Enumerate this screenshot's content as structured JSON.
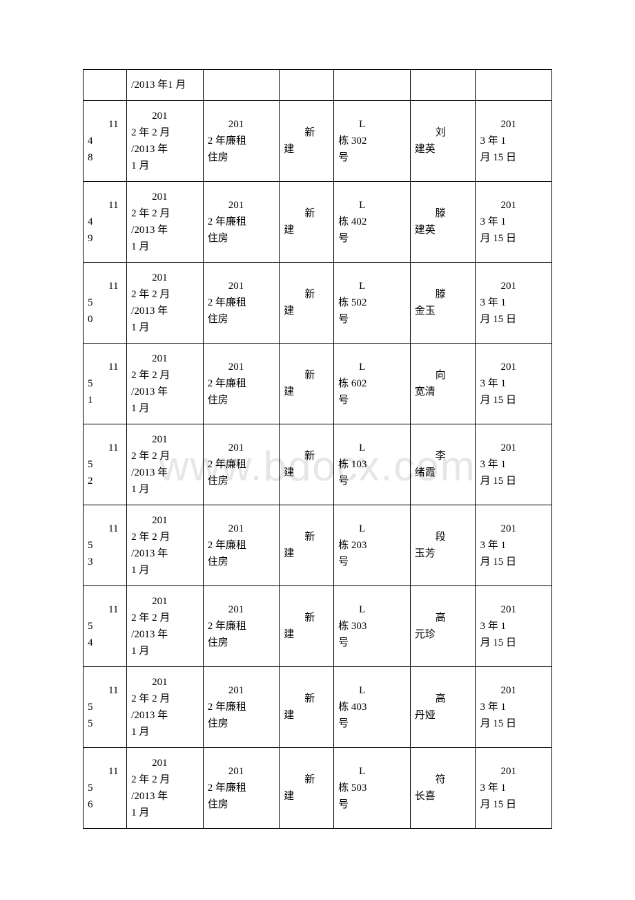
{
  "watermark": "www.bdocx.com",
  "rows": [
    {
      "c0": "",
      "c1": "/2013 年1 月",
      "c2": "",
      "c3": "",
      "c4": "",
      "c5": "",
      "c6": ""
    },
    {
      "c0_top": "114",
      "c0_bot": "8",
      "c1_top": "201",
      "c1_mid": "2 年 2 月",
      "c1_mid2": "/2013 年",
      "c1_bot": "1 月",
      "c2_top": "201",
      "c2_mid": "2 年廉租",
      "c2_bot": "住房",
      "c3_top": "新",
      "c3_bot": "建",
      "c4_top": "L",
      "c4_mid": "栋 302",
      "c4_bot": "号",
      "c5_top": "刘",
      "c5_bot": "建英",
      "c6_top": "201",
      "c6_mid": "3 年 1",
      "c6_bot": "月 15 日"
    },
    {
      "c0_top": "114",
      "c0_bot": "9",
      "c1_top": "201",
      "c1_mid": "2 年 2 月",
      "c1_mid2": "/2013 年",
      "c1_bot": "1 月",
      "c2_top": "201",
      "c2_mid": "2 年廉租",
      "c2_bot": "住房",
      "c3_top": "新",
      "c3_bot": "建",
      "c4_top": "L",
      "c4_mid": "栋 402",
      "c4_bot": "号",
      "c5_top": "滕",
      "c5_bot": "建英",
      "c6_top": "201",
      "c6_mid": "3 年 1",
      "c6_bot": "月 15 日"
    },
    {
      "c0_top": "115",
      "c0_bot": "0",
      "c1_top": "201",
      "c1_mid": "2 年 2 月",
      "c1_mid2": "/2013 年",
      "c1_bot": "1 月",
      "c2_top": "201",
      "c2_mid": "2 年廉租",
      "c2_bot": "住房",
      "c3_top": "新",
      "c3_bot": "建",
      "c4_top": "L",
      "c4_mid": "栋 502",
      "c4_bot": "号",
      "c5_top": "滕",
      "c5_bot": "金玉",
      "c6_top": "201",
      "c6_mid": "3 年 1",
      "c6_bot": "月 15 日"
    },
    {
      "c0_top": "115",
      "c0_bot": "1",
      "c1_top": "201",
      "c1_mid": "2 年 2 月",
      "c1_mid2": "/2013 年",
      "c1_bot": "1 月",
      "c2_top": "201",
      "c2_mid": "2 年廉租",
      "c2_bot": "住房",
      "c3_top": "新",
      "c3_bot": "建",
      "c4_top": "L",
      "c4_mid": "栋 602",
      "c4_bot": "号",
      "c5_top": "向",
      "c5_bot": "宽清",
      "c6_top": "201",
      "c6_mid": "3 年 1",
      "c6_bot": "月 15 日"
    },
    {
      "c0_top": "115",
      "c0_bot": "2",
      "c1_top": "201",
      "c1_mid": "2 年 2 月",
      "c1_mid2": "/2013 年",
      "c1_bot": "1 月",
      "c2_top": "201",
      "c2_mid": "2 年廉租",
      "c2_bot": "住房",
      "c3_top": "新",
      "c3_bot": "建",
      "c4_top": "L",
      "c4_mid": "栋 103",
      "c4_bot": "号",
      "c5_top": "李",
      "c5_bot": "绪霞",
      "c6_top": "201",
      "c6_mid": "3 年 1",
      "c6_bot": "月 15 日"
    },
    {
      "c0_top": "115",
      "c0_bot": "3",
      "c1_top": "201",
      "c1_mid": "2 年 2 月",
      "c1_mid2": "/2013 年",
      "c1_bot": "1 月",
      "c2_top": "201",
      "c2_mid": "2 年廉租",
      "c2_bot": "住房",
      "c3_top": "新",
      "c3_bot": "建",
      "c4_top": "L",
      "c4_mid": "栋 203",
      "c4_bot": "号",
      "c5_top": "段",
      "c5_bot": "玉芳",
      "c6_top": "201",
      "c6_mid": "3 年 1",
      "c6_bot": "月 15 日"
    },
    {
      "c0_top": "115",
      "c0_bot": "4",
      "c1_top": "201",
      "c1_mid": "2 年 2 月",
      "c1_mid2": "/2013 年",
      "c1_bot": "1 月",
      "c2_top": "201",
      "c2_mid": "2 年廉租",
      "c2_bot": "住房",
      "c3_top": "新",
      "c3_bot": "建",
      "c4_top": "L",
      "c4_mid": "栋 303",
      "c4_bot": "号",
      "c5_top": "高",
      "c5_bot": "元珍",
      "c6_top": "201",
      "c6_mid": "3 年 1",
      "c6_bot": "月 15 日"
    },
    {
      "c0_top": "115",
      "c0_bot": "5",
      "c1_top": "201",
      "c1_mid": "2 年 2 月",
      "c1_mid2": "/2013 年",
      "c1_bot": "1 月",
      "c2_top": "201",
      "c2_mid": "2 年廉租",
      "c2_bot": "住房",
      "c3_top": "新",
      "c3_bot": "建",
      "c4_top": "L",
      "c4_mid": "栋 403",
      "c4_bot": "号",
      "c5_top": "高",
      "c5_bot": "丹娅",
      "c6_top": "201",
      "c6_mid": "3 年 1",
      "c6_bot": "月 15 日"
    },
    {
      "c0_top": "115",
      "c0_bot": "6",
      "c1_top": "201",
      "c1_mid": "2 年 2 月",
      "c1_mid2": "/2013 年",
      "c1_bot": "1 月",
      "c2_top": "201",
      "c2_mid": "2 年廉租",
      "c2_bot": "住房",
      "c3_top": "新",
      "c3_bot": "建",
      "c4_top": "L",
      "c4_mid": "栋 503",
      "c4_bot": "号",
      "c5_top": "符",
      "c5_bot": "长喜",
      "c6_top": "201",
      "c6_mid": "3 年 1",
      "c6_bot": "月 15 日"
    }
  ]
}
